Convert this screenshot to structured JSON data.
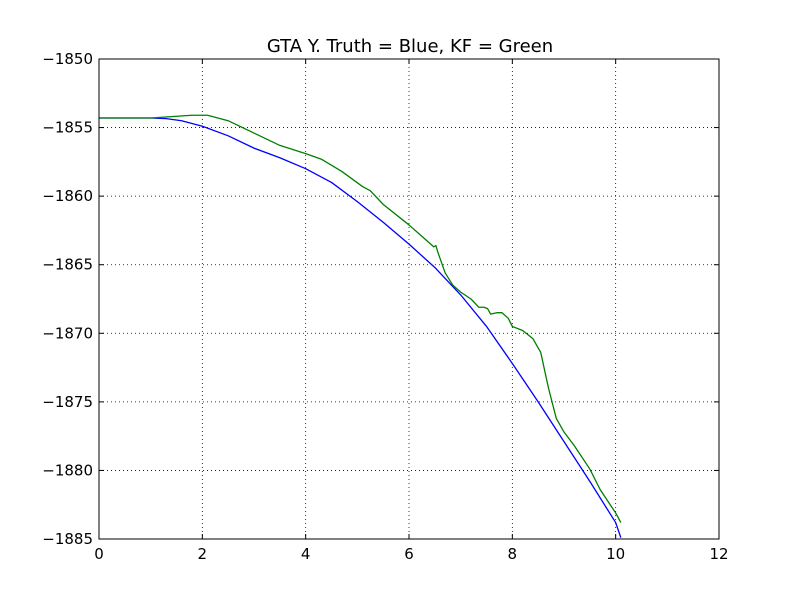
{
  "chart_data": {
    "type": "line",
    "title": "GTA Y. Truth = Blue, KF = Green",
    "xlabel": "",
    "ylabel": "",
    "xlim": [
      0,
      12
    ],
    "ylim": [
      -1885,
      -1850
    ],
    "xticks": [
      0,
      2,
      4,
      6,
      8,
      10,
      12
    ],
    "yticks": [
      -1850,
      -1855,
      -1860,
      -1865,
      -1870,
      -1875,
      -1880,
      -1885
    ],
    "xtick_labels": [
      "0",
      "2",
      "4",
      "6",
      "8",
      "10",
      "12"
    ],
    "ytick_labels": [
      "−1850",
      "−1855",
      "−1860",
      "−1865",
      "−1870",
      "−1875",
      "−1880",
      "−1885"
    ],
    "grid": true,
    "series": [
      {
        "color": "#0000ff",
        "points": [
          [
            0,
            -1854.3
          ],
          [
            0.5,
            -1854.3
          ],
          [
            1.0,
            -1854.3
          ],
          [
            1.3,
            -1854.35
          ],
          [
            1.6,
            -1854.5
          ],
          [
            2.0,
            -1854.9
          ],
          [
            2.5,
            -1855.6
          ],
          [
            3.0,
            -1856.5
          ],
          [
            3.5,
            -1857.2
          ],
          [
            4.0,
            -1858.0
          ],
          [
            4.5,
            -1859.0
          ],
          [
            5.0,
            -1860.4
          ],
          [
            5.5,
            -1861.9
          ],
          [
            6.0,
            -1863.5
          ],
          [
            6.5,
            -1865.2
          ],
          [
            7.0,
            -1867.2
          ],
          [
            7.5,
            -1869.5
          ],
          [
            8.0,
            -1872.2
          ],
          [
            8.5,
            -1875.0
          ],
          [
            9.0,
            -1877.9
          ],
          [
            9.5,
            -1880.8
          ],
          [
            10.0,
            -1883.8
          ],
          [
            10.1,
            -1884.9
          ]
        ]
      },
      {
        "color": "#007f00",
        "points": [
          [
            0,
            -1854.3
          ],
          [
            0.5,
            -1854.3
          ],
          [
            1.0,
            -1854.3
          ],
          [
            1.4,
            -1854.2
          ],
          [
            1.8,
            -1854.1
          ],
          [
            2.1,
            -1854.1
          ],
          [
            2.5,
            -1854.5
          ],
          [
            3.0,
            -1855.4
          ],
          [
            3.5,
            -1856.3
          ],
          [
            4.0,
            -1856.9
          ],
          [
            4.3,
            -1857.3
          ],
          [
            4.7,
            -1858.2
          ],
          [
            5.1,
            -1859.3
          ],
          [
            5.25,
            -1859.6
          ],
          [
            5.5,
            -1860.6
          ],
          [
            6.0,
            -1862.1
          ],
          [
            6.3,
            -1863.1
          ],
          [
            6.48,
            -1863.7
          ],
          [
            6.52,
            -1863.6
          ],
          [
            6.56,
            -1864.1
          ],
          [
            6.7,
            -1865.6
          ],
          [
            6.85,
            -1866.5
          ],
          [
            7.0,
            -1867.0
          ],
          [
            7.2,
            -1867.5
          ],
          [
            7.35,
            -1868.1
          ],
          [
            7.45,
            -1868.1
          ],
          [
            7.52,
            -1868.2
          ],
          [
            7.58,
            -1868.6
          ],
          [
            7.7,
            -1868.5
          ],
          [
            7.8,
            -1868.5
          ],
          [
            7.92,
            -1868.9
          ],
          [
            8.0,
            -1869.5
          ],
          [
            8.2,
            -1869.8
          ],
          [
            8.4,
            -1870.4
          ],
          [
            8.55,
            -1871.4
          ],
          [
            8.7,
            -1874.0
          ],
          [
            8.85,
            -1876.2
          ],
          [
            9.0,
            -1877.2
          ],
          [
            9.2,
            -1878.2
          ],
          [
            9.5,
            -1879.9
          ],
          [
            9.7,
            -1881.4
          ],
          [
            10.0,
            -1883.1
          ],
          [
            10.1,
            -1883.8
          ]
        ]
      }
    ]
  }
}
